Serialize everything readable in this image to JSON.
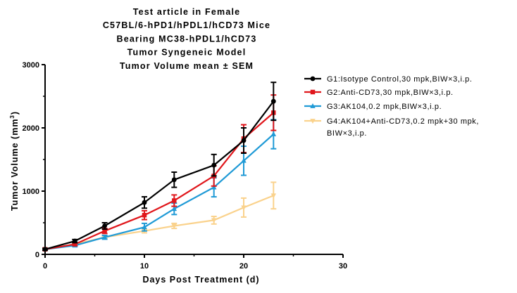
{
  "chart_data": {
    "type": "line",
    "title_lines": [
      "Test article in Female",
      "C57BL/6-hPD1/hPDL1/hCD73 Mice",
      "Bearing MC38-hPDL1/hCD73",
      "Tumor Syngeneic Model",
      "Tumor Volume mean ± SEM"
    ],
    "xlabel": "Days Post Treatment (d)",
    "ylabel": "Tumor Volume (mm",
    "ylabel_superscript": "3",
    "ylabel_close": ")",
    "xlim": [
      0,
      30
    ],
    "ylim": [
      0,
      3000
    ],
    "x_ticks": [
      0,
      10,
      20,
      30
    ],
    "x_tick_labels": [
      "0",
      "10",
      "20",
      "30"
    ],
    "y_ticks": [
      0,
      1000,
      2000,
      3000
    ],
    "y_tick_labels": [
      "0",
      "1000",
      "2000",
      "3000"
    ],
    "grid": false,
    "legend_position": "right",
    "series": [
      {
        "legend_lines": [
          "G1:Isotype Control,30 mpk,BIW×3,i.p."
        ],
        "color": "#000000",
        "marker": "circle",
        "x": [
          0,
          3,
          6,
          10,
          13,
          17,
          20,
          23
        ],
        "y": [
          80,
          210,
          450,
          820,
          1180,
          1410,
          1800,
          2420
        ],
        "err": [
          15,
          25,
          50,
          90,
          120,
          170,
          200,
          300
        ]
      },
      {
        "legend_lines": [
          "G2:Anti-CD73,30 mpk,BIW×3,i.p."
        ],
        "color": "#e0161b",
        "marker": "square",
        "x": [
          0,
          3,
          6,
          10,
          13,
          17,
          20,
          23
        ],
        "y": [
          80,
          160,
          370,
          620,
          850,
          1240,
          1830,
          2240
        ],
        "err": [
          15,
          20,
          40,
          70,
          90,
          160,
          220,
          280
        ]
      },
      {
        "legend_lines": [
          "G3:AK104,0.2 mpk,BIW×3,i.p."
        ],
        "color": "#1f9ad6",
        "marker": "triangle-up",
        "x": [
          0,
          3,
          6,
          10,
          13,
          17,
          20,
          23
        ],
        "y": [
          80,
          140,
          270,
          430,
          720,
          1060,
          1480,
          1900
        ],
        "err": [
          15,
          15,
          30,
          60,
          90,
          150,
          230,
          230
        ]
      },
      {
        "legend_lines": [
          "G4:AK104+Anti-CD73,0.2 mpk+30 mpk,",
          "BIW×3,i.p."
        ],
        "color": "#fad28c",
        "marker": "triangle-down",
        "x": [
          0,
          3,
          6,
          10,
          13,
          17,
          20,
          23
        ],
        "y": [
          80,
          160,
          270,
          370,
          450,
          540,
          740,
          930
        ],
        "err": [
          15,
          15,
          20,
          30,
          40,
          60,
          150,
          210
        ]
      }
    ]
  }
}
